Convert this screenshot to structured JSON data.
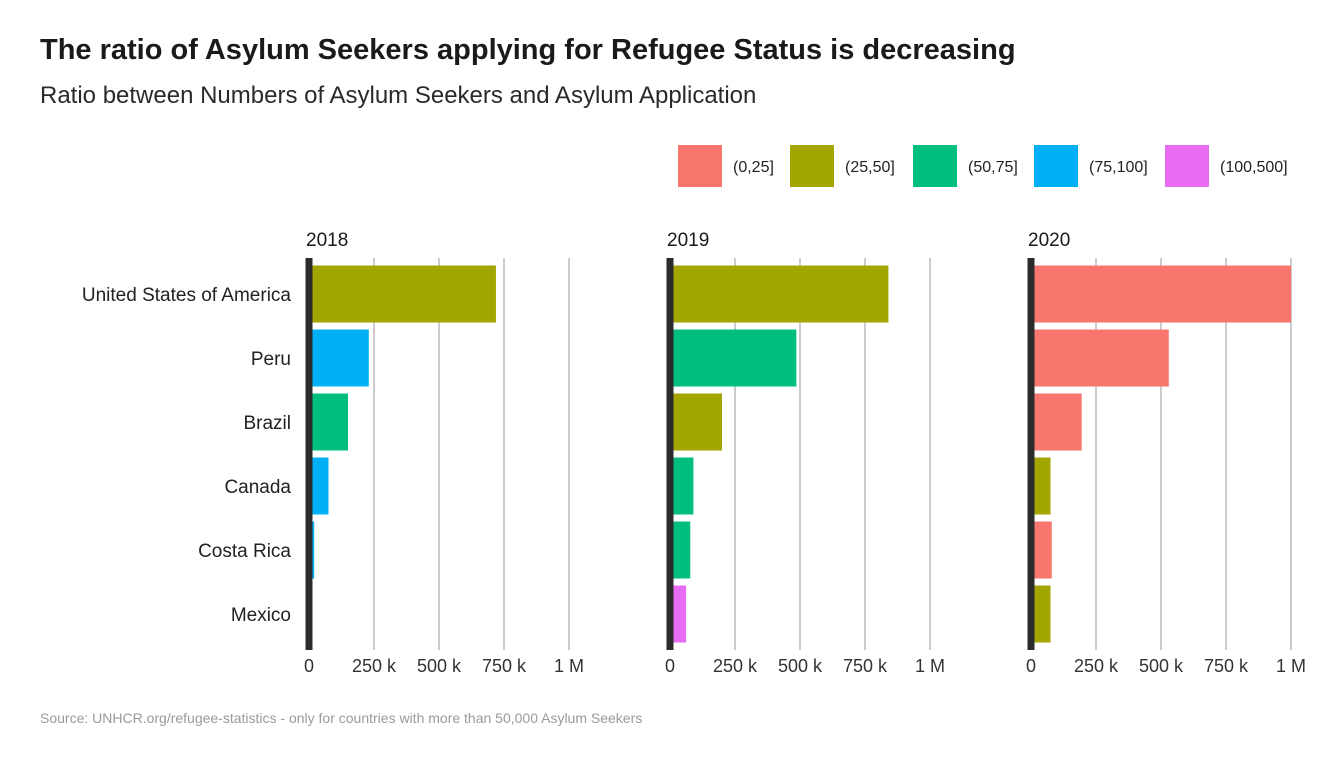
{
  "title": "The ratio of Asylum Seekers applying for Refugee Status is decreasing",
  "subtitle": "Ratio between Numbers of Asylum Seekers and Asylum Application",
  "caption": "Source: UNHCR.org/refugee-statistics - only for countries with more than 50,000 Asylum Seekers",
  "colors": {
    "(0,25]": "#F8766D",
    "(25,50]": "#A3A500",
    "(50,75]": "#00BF7D",
    "(75,100]": "#00B0F6",
    "(100,500]": "#E76BF3"
  },
  "chart_data": {
    "type": "bar",
    "orientation": "horizontal",
    "facets": [
      "2018",
      "2019",
      "2020"
    ],
    "categories": [
      "United States of America",
      "Peru",
      "Brazil",
      "Canada",
      "Costa Rica",
      "Mexico"
    ],
    "xlim": [
      0,
      1000000
    ],
    "x_ticks": [
      0,
      250000,
      500000,
      750000,
      1000000
    ],
    "x_tick_labels": [
      "0",
      "250 k",
      "500 k",
      "750 k",
      "1 M"
    ],
    "grid": true,
    "legend": {
      "position": "top-right",
      "entries": [
        "(0,25]",
        "(25,50]",
        "(50,75]",
        "(75,100]",
        "(100,500]"
      ]
    },
    "panels": [
      {
        "facet": "2018",
        "values": [
          719000,
          230000,
          150000,
          75000,
          20000,
          13000
        ],
        "groups": [
          "(25,50]",
          "(75,100]",
          "(50,75]",
          "(75,100]",
          "(75,100]",
          "(100,500]"
        ]
      },
      {
        "facet": "2019",
        "values": [
          840000,
          486000,
          200000,
          90000,
          78000,
          62000
        ],
        "groups": [
          "(25,50]",
          "(50,75]",
          "(25,50]",
          "(50,75]",
          "(50,75]",
          "(100,500]"
        ]
      },
      {
        "facet": "2020",
        "values": [
          1000000,
          530000,
          195000,
          75000,
          80000,
          75000
        ],
        "groups": [
          "(0,25]",
          "(0,25]",
          "(0,25]",
          "(25,50]",
          "(0,25]",
          "(25,50]"
        ]
      }
    ]
  }
}
